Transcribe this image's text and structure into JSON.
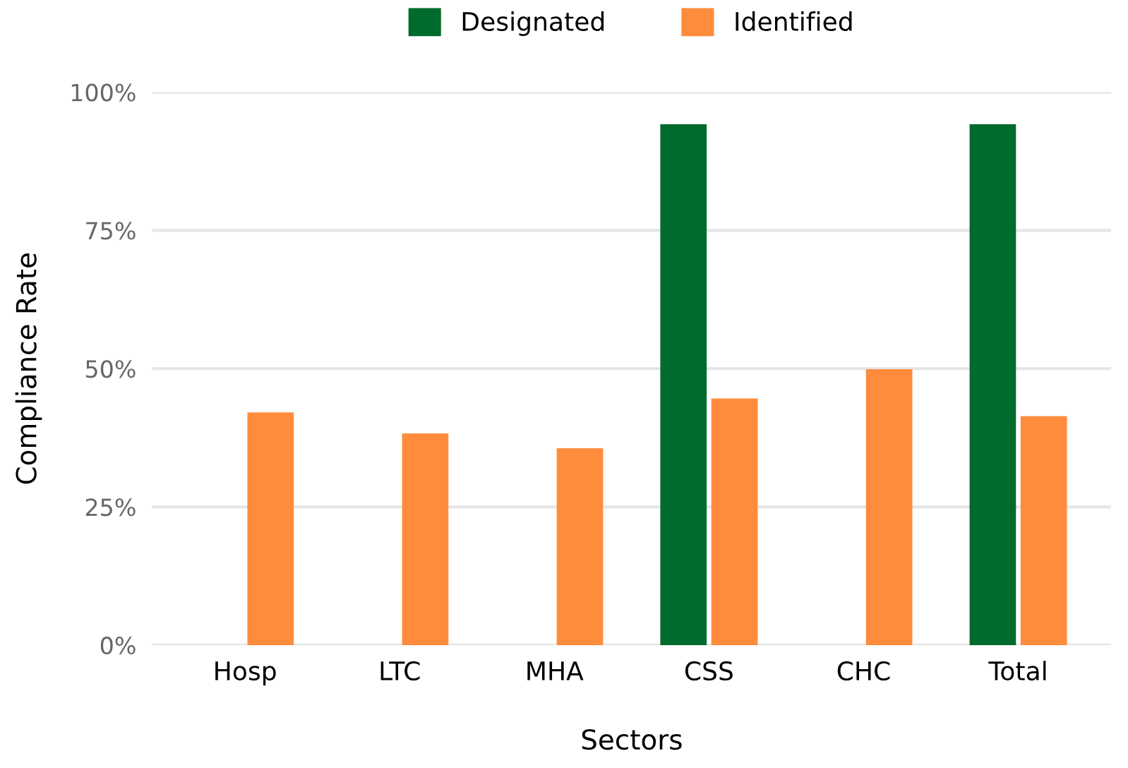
{
  "chart_data": {
    "type": "bar",
    "xlabel": "Sectors",
    "ylabel": "Compliance Rate",
    "categories": [
      "Hosp",
      "LTC",
      "MHA",
      "CSS",
      "CHC",
      "Total"
    ],
    "series": [
      {
        "name": "Designated",
        "color": "#006b2d",
        "values": [
          null,
          null,
          null,
          94.2,
          null,
          94.2
        ]
      },
      {
        "name": "Identified",
        "color": "#ff8c3c",
        "values": [
          42.1,
          38.3,
          35.6,
          44.6,
          49.9,
          41.4
        ]
      }
    ],
    "ylim": [
      0,
      100
    ],
    "yticks": [
      {
        "value": 0,
        "label": "0%"
      },
      {
        "value": 25,
        "label": "25%"
      },
      {
        "value": 50,
        "label": "50%"
      },
      {
        "value": 75,
        "label": "75%"
      },
      {
        "value": 100,
        "label": "100%"
      }
    ],
    "grid": "y",
    "legend": "top"
  }
}
